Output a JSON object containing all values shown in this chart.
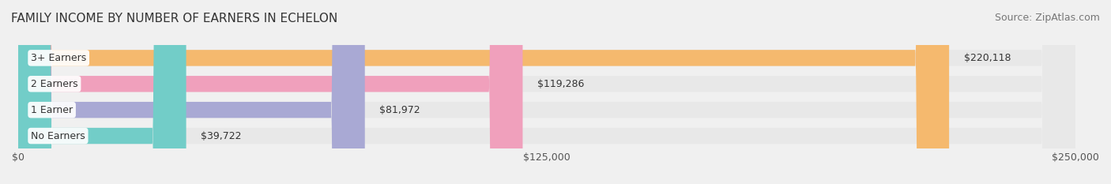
{
  "title": "FAMILY INCOME BY NUMBER OF EARNERS IN ECHELON",
  "source": "Source: ZipAtlas.com",
  "categories": [
    "No Earners",
    "1 Earner",
    "2 Earners",
    "3+ Earners"
  ],
  "values": [
    39722,
    81972,
    119286,
    220118
  ],
  "bar_colors": [
    "#72cdc8",
    "#a9a9d4",
    "#f0a0bc",
    "#f5b96e"
  ],
  "bar_labels": [
    "$39,722",
    "$81,972",
    "$119,286",
    "$220,118"
  ],
  "xlim": [
    0,
    250000
  ],
  "xticks": [
    0,
    125000,
    250000
  ],
  "xtick_labels": [
    "$0",
    "$125,000",
    "$250,000"
  ],
  "background_color": "#f0f0f0",
  "bar_bg_color": "#e8e8e8",
  "title_fontsize": 11,
  "source_fontsize": 9,
  "label_fontsize": 9,
  "tick_fontsize": 9,
  "bar_height": 0.62,
  "bar_gap": 0.15
}
